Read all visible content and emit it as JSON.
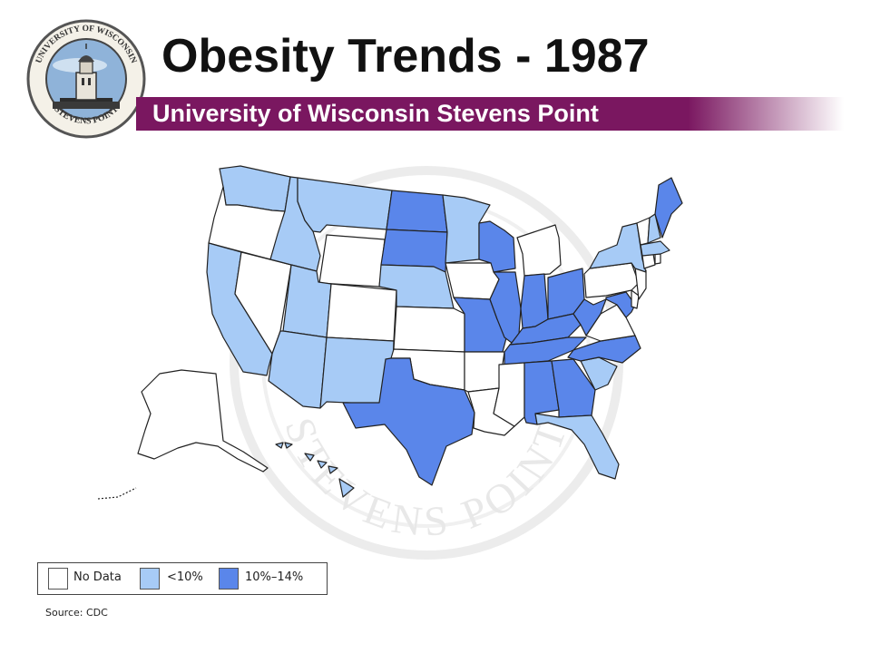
{
  "header": {
    "title": "Obesity Trends - 1987",
    "subtitle": "University of Wisconsin Stevens Point",
    "seal_text_top": "UNIVERSITY OF WISCONSIN",
    "seal_text_bottom": "STEVENS POINT"
  },
  "watermark_text": "STEVENS POINT",
  "colors": {
    "no_data": "#ffffff",
    "under_10": "#a7cbf6",
    "ten_to_14": "#5a86ea",
    "bar": "#7a1760"
  },
  "legend": {
    "items": [
      {
        "label": "No Data",
        "category": "no_data"
      },
      {
        "label": "<10%",
        "category": "under_10"
      },
      {
        "label": "10%–14%",
        "category": "ten_to_14"
      }
    ]
  },
  "states": {
    "WA": "under_10",
    "OR": "no_data",
    "CA": "under_10",
    "NV": "no_data",
    "ID": "under_10",
    "MT": "under_10",
    "WY": "no_data",
    "UT": "under_10",
    "AZ": "under_10",
    "CO": "no_data",
    "NM": "under_10",
    "ND": "ten_to_14",
    "SD": "ten_to_14",
    "NE": "under_10",
    "KS": "no_data",
    "OK": "no_data",
    "TX": "ten_to_14",
    "MN": "under_10",
    "IA": "no_data",
    "MO": "ten_to_14",
    "AR": "no_data",
    "LA": "no_data",
    "WI": "ten_to_14",
    "IL": "ten_to_14",
    "MI": "no_data",
    "IN": "ten_to_14",
    "OH": "ten_to_14",
    "KY": "ten_to_14",
    "TN": "ten_to_14",
    "MS": "no_data",
    "AL": "ten_to_14",
    "GA": "ten_to_14",
    "FL": "under_10",
    "SC": "under_10",
    "NC": "ten_to_14",
    "VA": "no_data",
    "WV": "ten_to_14",
    "MD": "ten_to_14",
    "DE": "no_data",
    "NJ": "no_data",
    "PA": "no_data",
    "NY": "under_10",
    "CT": "no_data",
    "RI": "no_data",
    "MA": "under_10",
    "VT": "no_data",
    "NH": "under_10",
    "ME": "ten_to_14",
    "AK": "no_data",
    "HI": "under_10"
  },
  "source": "Source: CDC"
}
